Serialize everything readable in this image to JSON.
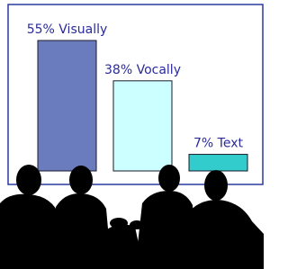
{
  "chart_data": {
    "type": "bar",
    "values": [
      55,
      38,
      7
    ],
    "value_labels": [
      "55% Visually",
      "38% Vocally",
      "7% Text"
    ],
    "colors": [
      "#6a7cbd",
      "#ccffff",
      "#33cccc"
    ]
  }
}
